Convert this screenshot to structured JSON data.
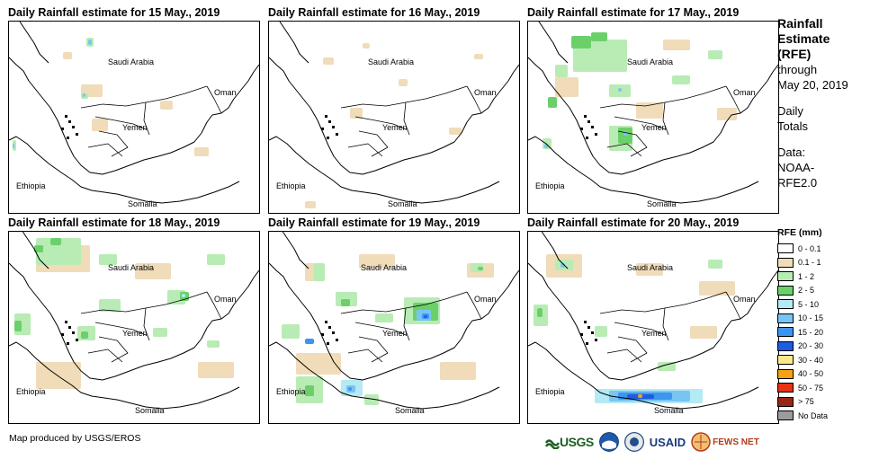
{
  "panels": [
    {
      "title": "Daily Rainfall estimate for 15 May., 2019",
      "day": 15
    },
    {
      "title": "Daily Rainfall estimate for 16 May., 2019",
      "day": 16
    },
    {
      "title": "Daily Rainfall estimate for 17 May., 2019",
      "day": 17
    },
    {
      "title": "Daily Rainfall estimate for 18 May., 2019",
      "day": 18
    },
    {
      "title": "Daily Rainfall estimate for 19 May., 2019",
      "day": 19
    },
    {
      "title": "Daily Rainfall estimate for 20 May., 2019",
      "day": 20
    }
  ],
  "map_labels": {
    "saudi_arabia": "Saudi Arabia",
    "oman": "Oman",
    "yemen": "Yemen",
    "ethiopia": "Ethiopia",
    "somalia": "Somalia"
  },
  "sidebar": {
    "title_line1": "Rainfall",
    "title_line2": "Estimate",
    "title_line3": "(RFE)",
    "through": "through",
    "through_date": "May 20, 2019",
    "daily": "Daily",
    "totals": "Totals",
    "data_label": "Data:",
    "data_source1": "NOAA-",
    "data_source2": "RFE2.0"
  },
  "legend": {
    "title": "RFE (mm)",
    "items": [
      {
        "label": "0 - 0.1",
        "color": "#ffffff"
      },
      {
        "label": "0.1 - 1",
        "color": "#f0dcb8"
      },
      {
        "label": "1 - 2",
        "color": "#b8ecb4"
      },
      {
        "label": "2 - 5",
        "color": "#6cd06a"
      },
      {
        "label": "5 - 10",
        "color": "#b4eaf4"
      },
      {
        "label": "10 - 15",
        "color": "#78c4f4"
      },
      {
        "label": "15 - 20",
        "color": "#3c96f0"
      },
      {
        "label": "20 - 30",
        "color": "#1e5ce0"
      },
      {
        "label": "30 - 40",
        "color": "#fce88c"
      },
      {
        "label": "40 - 50",
        "color": "#f4a214"
      },
      {
        "label": "50 - 75",
        "color": "#e83214"
      },
      {
        "label": "> 75",
        "color": "#962814"
      },
      {
        "label": "No Data",
        "color": "#9c9c9c"
      }
    ]
  },
  "footer": {
    "credit": "Map produced by USGS/EROS",
    "logos": [
      "USGS",
      "NOAA",
      "USAID",
      "FEWS NET"
    ]
  }
}
